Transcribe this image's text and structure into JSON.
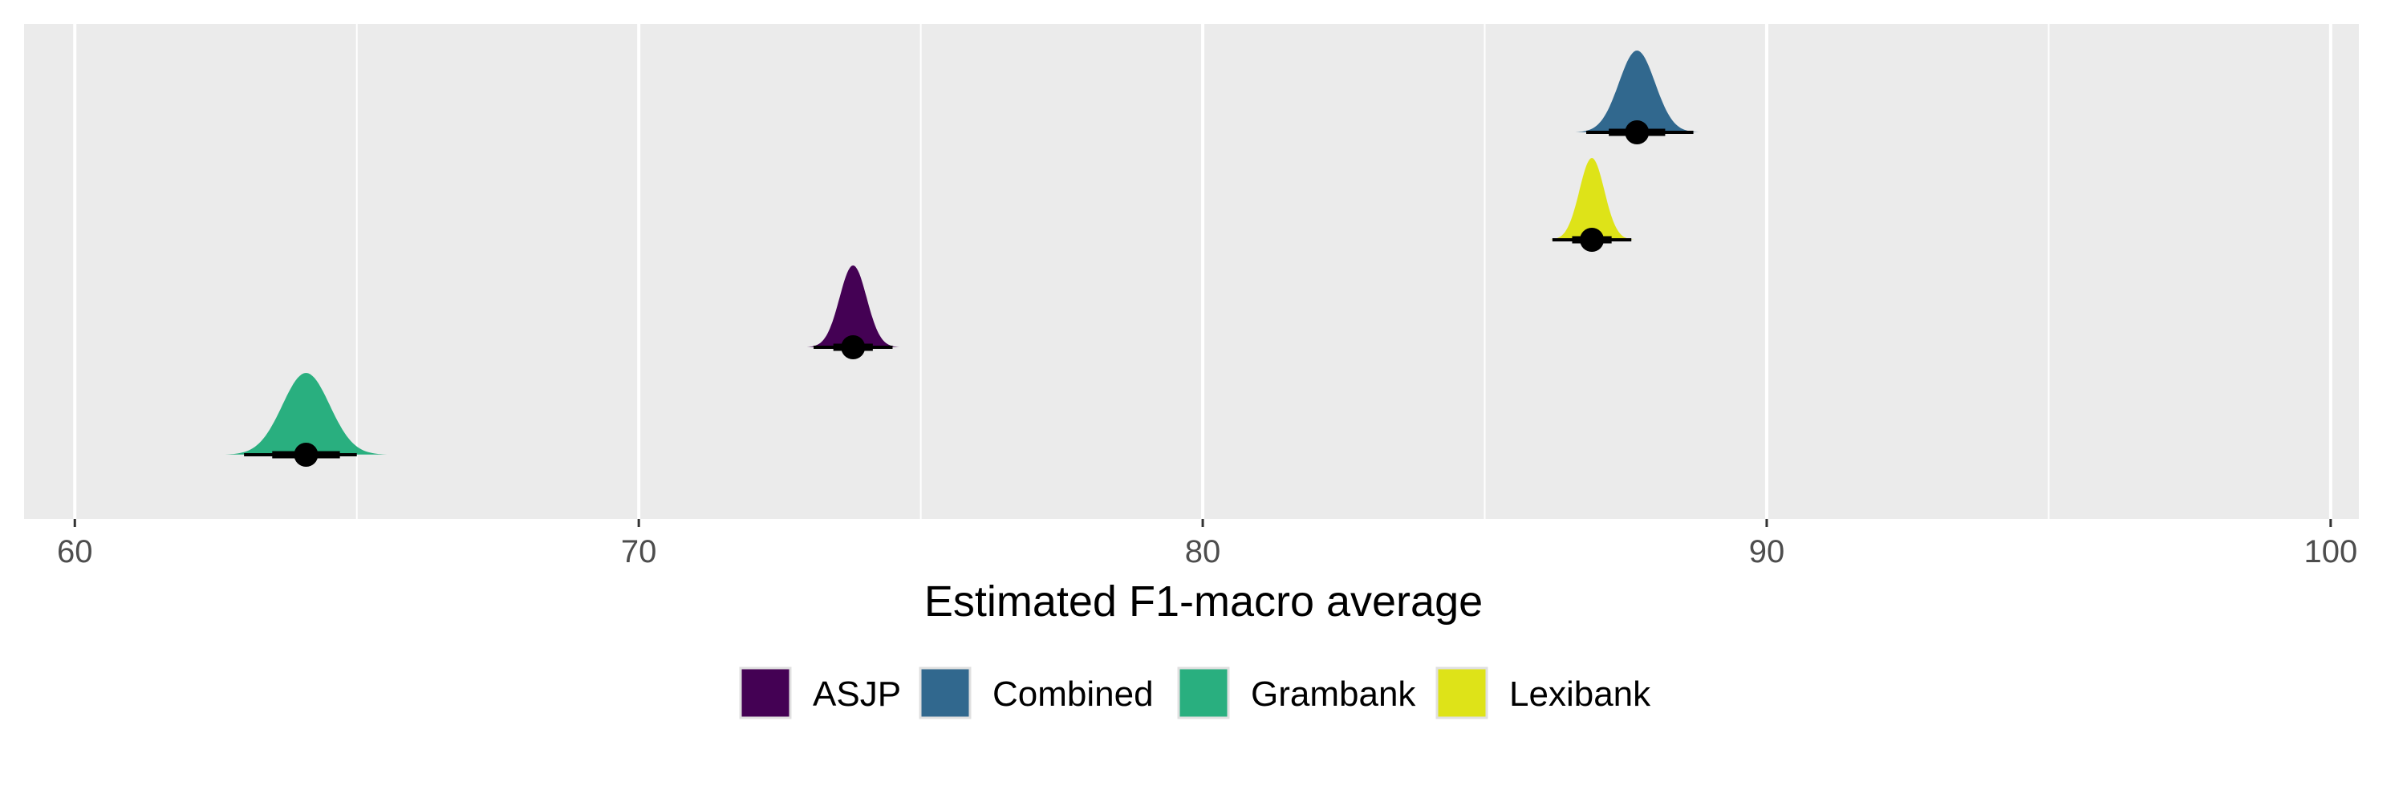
{
  "chart_data": {
    "type": "density-interval",
    "xlabel": "Estimated F1-macro average",
    "xlim": [
      59.1,
      100.5
    ],
    "x_ticks": [
      60,
      70,
      80,
      90,
      100
    ],
    "x_minor_ticks": [
      65,
      75,
      85,
      95
    ],
    "grid": true,
    "legend_position": "bottom",
    "series": [
      {
        "name": "Combined",
        "color": "#31688E",
        "median": 87.7,
        "sd": 0.32,
        "interval_inner": [
          87.2,
          88.2
        ],
        "interval_outer": [
          86.8,
          88.7
        ],
        "rank": 4
      },
      {
        "name": "Lexibank",
        "color": "#DEE318",
        "median": 86.9,
        "sd": 0.22,
        "interval_inner": [
          86.55,
          87.25
        ],
        "interval_outer": [
          86.2,
          87.6
        ],
        "rank": 3
      },
      {
        "name": "ASJP",
        "color": "#440154",
        "median": 73.8,
        "sd": 0.24,
        "interval_inner": [
          73.45,
          74.15
        ],
        "interval_outer": [
          73.1,
          74.5
        ],
        "rank": 2
      },
      {
        "name": "Grambank",
        "color": "#29AF7F",
        "median": 64.1,
        "sd": 0.42,
        "interval_inner": [
          63.5,
          64.7
        ],
        "interval_outer": [
          63.0,
          65.0
        ],
        "rank": 1
      }
    ],
    "legend": [
      "ASJP",
      "Combined",
      "Grambank",
      "Lexibank"
    ]
  }
}
